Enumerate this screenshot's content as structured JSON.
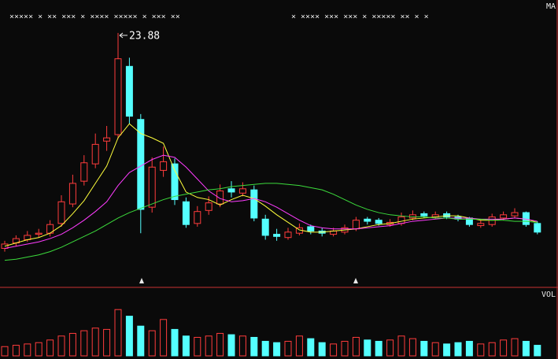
{
  "chart_data": {
    "type": "candlestick",
    "legend_label": "MA",
    "volume_label": "VOL",
    "top_marks": [
      "×××××  ×  ××  ×××  ×  ××××  ×××××  ×  ×××  ××",
      "×  ××××  ×××  ××× ×  ×××××  ××   ×  ×"
    ],
    "up_color": "#ff3c3c",
    "down_color": "#54ffff",
    "ylim": [
      0.4,
      26.2
    ],
    "vol_lim": [
      0,
      100
    ],
    "open": [
      4.0,
      4.5,
      4.8,
      5.3,
      5.4,
      6.3,
      8.1,
      10.2,
      11.8,
      13.9,
      14.5,
      20.8,
      15.9,
      7.8,
      11.2,
      11.8,
      8.3,
      6.3,
      7.5,
      8.1,
      9.5,
      9.1,
      9.4,
      6.7,
      5.3,
      5.0,
      5.4,
      6.0,
      5.6,
      5.3,
      5.5,
      5.8,
      6.7,
      6.6,
      6.2,
      6.3,
      6.8,
      7.2,
      6.9,
      7.2,
      6.9,
      6.8,
      6.1,
      6.2,
      6.8,
      7.0,
      7.3,
      6.3
    ],
    "high": [
      4.7,
      5.2,
      5.6,
      5.8,
      6.6,
      8.9,
      10.8,
      12.6,
      14.6,
      15.3,
      23.88,
      21.6,
      16.4,
      12.4,
      13.4,
      12.3,
      8.7,
      7.9,
      8.8,
      9.9,
      10.2,
      10.1,
      9.8,
      7.1,
      5.8,
      5.9,
      6.3,
      6.2,
      5.9,
      5.9,
      6.2,
      6.9,
      6.9,
      6.8,
      6.7,
      7.3,
      7.5,
      7.4,
      7.4,
      7.4,
      7.1,
      6.9,
      6.6,
      7.2,
      7.4,
      7.7,
      7.4,
      6.5
    ],
    "low": [
      3.7,
      4.2,
      4.6,
      5.0,
      5.1,
      6.0,
      7.8,
      9.8,
      11.4,
      13.0,
      14.1,
      15.5,
      5.4,
      7.3,
      10.6,
      8.0,
      5.9,
      6.0,
      7.1,
      7.8,
      8.7,
      8.8,
      6.5,
      4.8,
      4.7,
      4.8,
      5.2,
      5.3,
      5.1,
      5.1,
      5.3,
      5.6,
      6.2,
      6.1,
      6.0,
      6.1,
      6.6,
      6.8,
      6.7,
      6.7,
      6.5,
      6.0,
      5.9,
      6.0,
      6.6,
      6.8,
      6.0,
      5.3
    ],
    "close": [
      4.4,
      4.9,
      5.2,
      5.4,
      6.2,
      8.3,
      10.0,
      11.9,
      13.6,
      14.2,
      21.5,
      16.2,
      7.6,
      11.5,
      12.0,
      8.5,
      6.2,
      7.4,
      8.2,
      9.3,
      9.2,
      9.5,
      6.8,
      5.2,
      5.1,
      5.5,
      5.9,
      5.6,
      5.4,
      5.6,
      5.9,
      6.6,
      6.5,
      6.3,
      6.4,
      6.9,
      7.1,
      7.0,
      7.1,
      6.9,
      6.7,
      6.2,
      6.3,
      6.9,
      7.1,
      7.3,
      6.2,
      5.5
    ],
    "ma_lines": [
      {
        "color": "#ffff3c",
        "values": [
          4.2,
          4.5,
          4.8,
          5.0,
          5.4,
          6.1,
          7.2,
          8.4,
          10.0,
          11.6,
          14.2,
          15.5,
          14.6,
          14.2,
          13.7,
          11.2,
          9.2,
          8.7,
          8.5,
          8.0,
          8.5,
          8.9,
          8.6,
          7.9,
          7.1,
          6.4,
          5.7,
          5.5,
          5.5,
          5.6,
          5.7,
          5.8,
          6.0,
          6.2,
          6.3,
          6.5,
          6.7,
          6.8,
          6.9,
          7.0,
          7.0,
          6.8,
          6.6,
          6.6,
          6.7,
          6.8,
          6.7,
          6.4
        ]
      },
      {
        "color": "#ff3cff",
        "values": [
          4.0,
          4.2,
          4.4,
          4.6,
          4.9,
          5.3,
          5.9,
          6.6,
          7.4,
          8.3,
          9.8,
          11.0,
          11.6,
          12.2,
          12.6,
          12.4,
          11.5,
          10.4,
          9.3,
          8.6,
          8.3,
          8.4,
          8.6,
          8.3,
          7.8,
          7.2,
          6.6,
          6.1,
          5.9,
          5.8,
          5.8,
          5.8,
          5.9,
          6.0,
          6.1,
          6.3,
          6.5,
          6.6,
          6.7,
          6.8,
          6.8,
          6.8,
          6.7,
          6.7,
          6.7,
          6.8,
          6.7,
          6.5
        ]
      },
      {
        "color": "#3cdc3c",
        "values": [
          2.9,
          3.0,
          3.2,
          3.4,
          3.7,
          4.1,
          4.6,
          5.1,
          5.6,
          6.2,
          6.8,
          7.3,
          7.7,
          8.1,
          8.5,
          8.8,
          9.0,
          9.2,
          9.4,
          9.5,
          9.7,
          9.8,
          9.9,
          10.0,
          10.0,
          9.9,
          9.8,
          9.6,
          9.4,
          9.0,
          8.5,
          8.0,
          7.6,
          7.3,
          7.1,
          7.0,
          6.9,
          6.9,
          6.8,
          6.8,
          6.7,
          6.7,
          6.7,
          6.6,
          6.6,
          6.5,
          6.5,
          6.4
        ]
      }
    ],
    "volume": [
      14,
      16,
      18,
      20,
      24,
      30,
      34,
      38,
      42,
      40,
      70,
      60,
      45,
      38,
      55,
      40,
      30,
      28,
      30,
      34,
      32,
      30,
      28,
      22,
      20,
      22,
      30,
      26,
      20,
      18,
      22,
      28,
      24,
      22,
      24,
      30,
      26,
      22,
      20,
      18,
      20,
      22,
      18,
      20,
      24,
      26,
      22,
      16
    ]
  }
}
